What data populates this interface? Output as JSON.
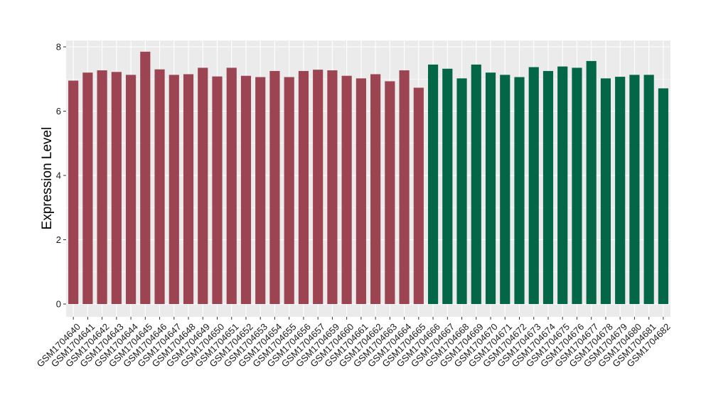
{
  "chart_data": {
    "type": "bar",
    "ylabel": "Expression Level",
    "xlabel": "",
    "ylim": [
      0,
      8.3
    ],
    "yticks": [
      0,
      2,
      4,
      6,
      8
    ],
    "grid": true,
    "panel_background": "#ebebeb",
    "categories": [
      "GSM1704640",
      "GSM1704641",
      "GSM1704642",
      "GSM1704643",
      "GSM1704644",
      "GSM1704645",
      "GSM1704646",
      "GSM1704647",
      "GSM1704648",
      "GSM1704649",
      "GSM1704650",
      "GSM1704651",
      "GSM1704652",
      "GSM1704653",
      "GSM1704654",
      "GSM1704655",
      "GSM1704656",
      "GSM1704657",
      "GSM1704659",
      "GSM1704660",
      "GSM1704661",
      "GSM1704662",
      "GSM1704663",
      "GSM1704664",
      "GSM1704665",
      "GSM1704666",
      "GSM1704667",
      "GSM1704668",
      "GSM1704669",
      "GSM1704670",
      "GSM1704671",
      "GSM1704672",
      "GSM1704673",
      "GSM1704674",
      "GSM1704675",
      "GSM1704676",
      "GSM1704677",
      "GSM1704678",
      "GSM1704679",
      "GSM1704680",
      "GSM1704681",
      "GSM1704682"
    ],
    "values": [
      6.95,
      7.2,
      7.27,
      7.22,
      7.13,
      7.85,
      7.3,
      7.13,
      7.15,
      7.35,
      7.08,
      7.35,
      7.1,
      7.06,
      7.25,
      7.06,
      7.25,
      7.29,
      7.27,
      7.1,
      7.02,
      7.15,
      6.93,
      7.27,
      6.73,
      7.45,
      7.32,
      7.02,
      7.45,
      7.2,
      7.13,
      7.06,
      7.37,
      7.25,
      7.39,
      7.35,
      7.56,
      7.02,
      7.07,
      7.13,
      7.13,
      6.71
    ],
    "bar_colors": [
      "#9c4452",
      "#9c4452",
      "#9c4452",
      "#9c4452",
      "#9c4452",
      "#9c4452",
      "#9c4452",
      "#9c4452",
      "#9c4452",
      "#9c4452",
      "#9c4452",
      "#9c4452",
      "#9c4452",
      "#9c4452",
      "#9c4452",
      "#9c4452",
      "#9c4452",
      "#9c4452",
      "#9c4452",
      "#9c4452",
      "#9c4452",
      "#9c4452",
      "#9c4452",
      "#9c4452",
      "#9c4452",
      "#036646",
      "#036646",
      "#036646",
      "#036646",
      "#036646",
      "#036646",
      "#036646",
      "#036646",
      "#036646",
      "#036646",
      "#036646",
      "#036646",
      "#036646",
      "#036646",
      "#036646",
      "#036646",
      "#036646"
    ]
  }
}
